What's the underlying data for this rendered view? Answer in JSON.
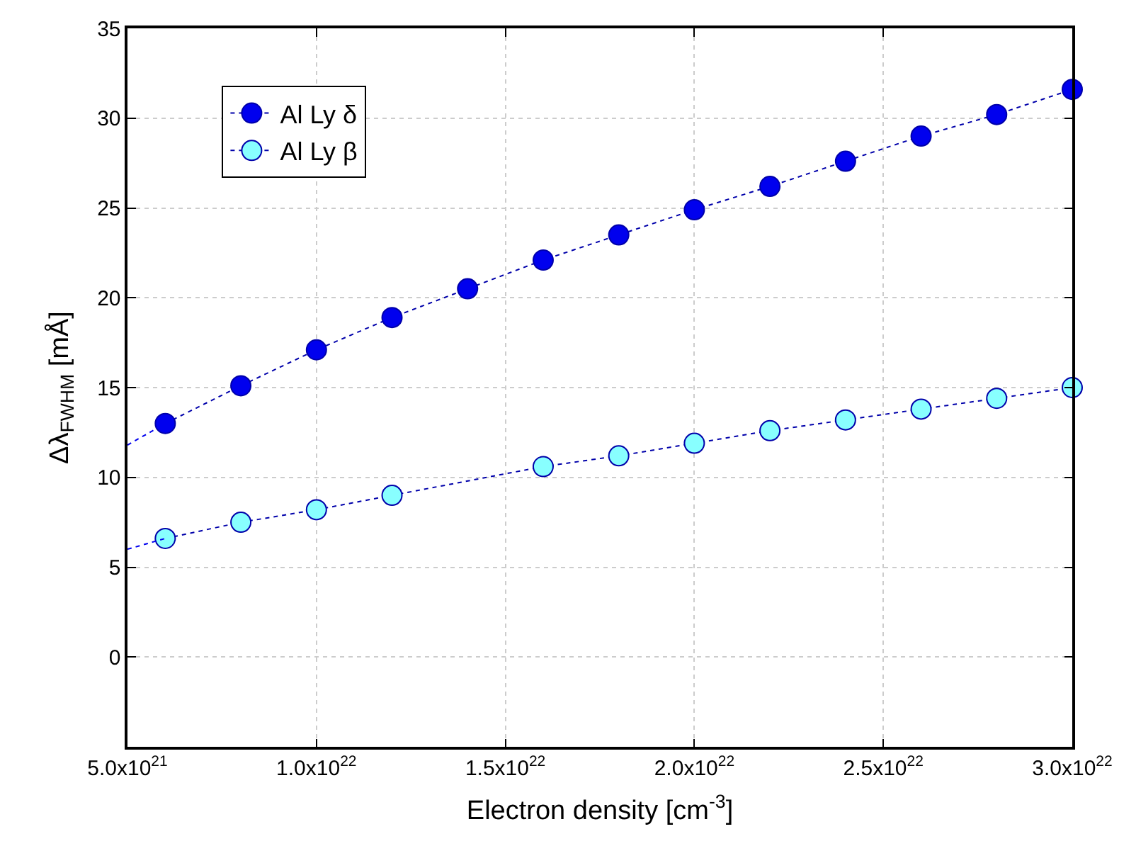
{
  "chart_data": {
    "type": "line",
    "xlabel": "Electron density [cm$^{-3}$]",
    "ylabel": "Δλ$_{FWHM}$ [mÅ]",
    "xlim": [
      5e+21,
      3e+22
    ],
    "ylim": [
      -5,
      35
    ],
    "xticks": [
      {
        "value": 5e+21,
        "label": "5.0x10$^{21}$"
      },
      {
        "value": 1e+22,
        "label": "1.0x10$^{22}$"
      },
      {
        "value": 1.5e+22,
        "label": "1.5x10$^{22}$"
      },
      {
        "value": 2e+22,
        "label": "2.0x10$^{22}$"
      },
      {
        "value": 2.5e+22,
        "label": "2.5x10$^{22}$"
      },
      {
        "value": 3e+22,
        "label": "3.0x10$^{22}$"
      }
    ],
    "yticks": [
      0,
      5,
      10,
      15,
      20,
      25,
      30,
      35
    ],
    "grid": true,
    "legend": "top left",
    "marker": "circle",
    "line_style": "dotted",
    "series": [
      {
        "name": "Al Ly δ",
        "color": "#0000ee",
        "x": [
          6e+21,
          8e+21,
          1e+22,
          1.2e+22,
          1.4e+22,
          1.6e+22,
          1.8e+22,
          2e+22,
          2.2e+22,
          2.4e+22,
          2.6e+22,
          2.8e+22,
          3e+22
        ],
        "values": [
          13.0,
          15.1,
          17.1,
          18.9,
          20.5,
          22.1,
          23.5,
          24.9,
          26.2,
          27.6,
          29.0,
          30.2,
          31.6
        ]
      },
      {
        "name": "Al Ly β",
        "color": "#88ffff",
        "x": [
          6e+21,
          8e+21,
          1e+22,
          1.2e+22,
          1.6e+22,
          1.8e+22,
          2e+22,
          2.2e+22,
          2.4e+22,
          2.6e+22,
          2.8e+22,
          3e+22
        ],
        "values": [
          6.6,
          7.5,
          8.2,
          9.0,
          10.6,
          11.2,
          11.9,
          12.6,
          13.2,
          13.8,
          14.4,
          15.0
        ]
      },
      {
        "type": "line",
        "marker": "none",
        "color": "#0000ee",
        "x": [
          5e+21,
          6e+21
        ],
        "values": [
          11.8,
          13.0
        ]
      },
      {
        "type": "line",
        "marker": "none",
        "color": "#0000ee",
        "x": [
          5e+21,
          6e+21
        ],
        "values": [
          6.0,
          6.6
        ]
      }
    ]
  }
}
